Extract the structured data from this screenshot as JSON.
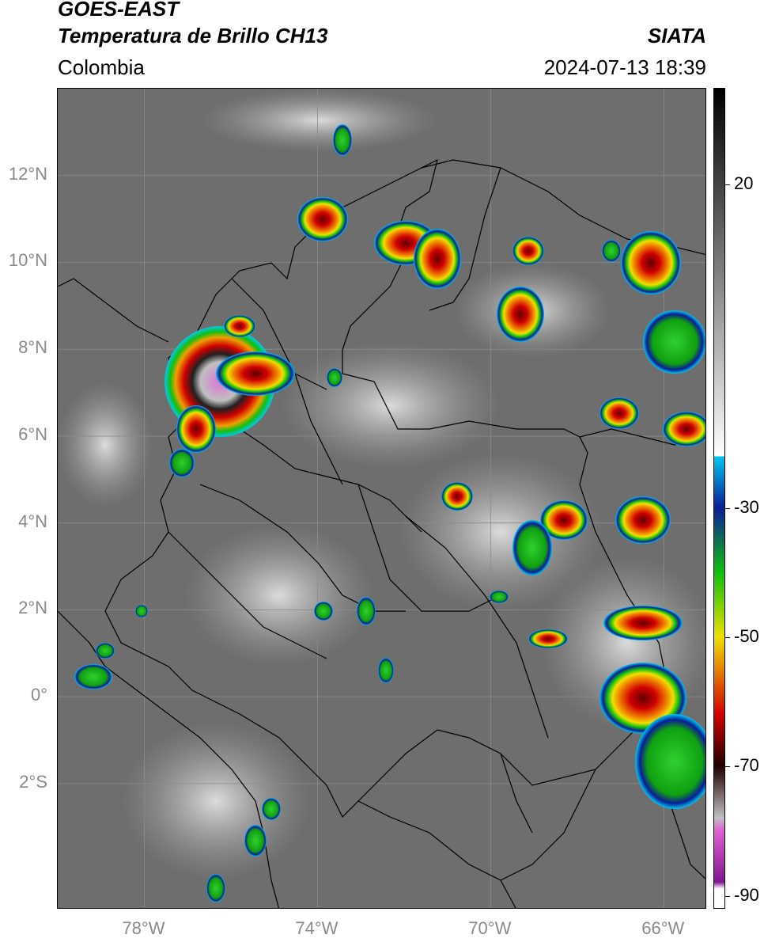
{
  "header": {
    "satellite": "GOES-EAST",
    "product": "Temperatura de Brillo CH13",
    "region": "Colombia",
    "agency": "SIATA",
    "timestamp": "2024-07-13 18:39"
  },
  "map": {
    "lat_ticks": [
      "12°N",
      "10°N",
      "8°N",
      "6°N",
      "4°N",
      "2°N",
      "0°",
      "2°S"
    ],
    "lon_ticks": [
      "78°W",
      "74°W",
      "70°W",
      "66°W"
    ],
    "lat_values": [
      12,
      10,
      8,
      6,
      4,
      2,
      0,
      -2
    ],
    "lon_values": [
      -78,
      -74,
      -70,
      -66
    ],
    "extent": {
      "lon_min": -80,
      "lon_max": -65,
      "lat_min": -4.9,
      "lat_max": 14
    },
    "grid": true
  },
  "colorbar": {
    "ticks": [
      "20",
      "-30",
      "-50",
      "-70",
      "-90"
    ],
    "values": [
      20,
      -30,
      -50,
      -70,
      -90
    ],
    "range": [
      35,
      -92
    ],
    "colors": {
      "warm_top": "#000000",
      "warm_bottom": "#ffffff",
      "cyan": "#00c8f0",
      "blue": "#0a1e96",
      "green": "#10c010",
      "yellow": "#f0e000",
      "red": "#d00000",
      "dark": "#200000",
      "magenta": "#e060d0",
      "purple": "#801890"
    }
  }
}
